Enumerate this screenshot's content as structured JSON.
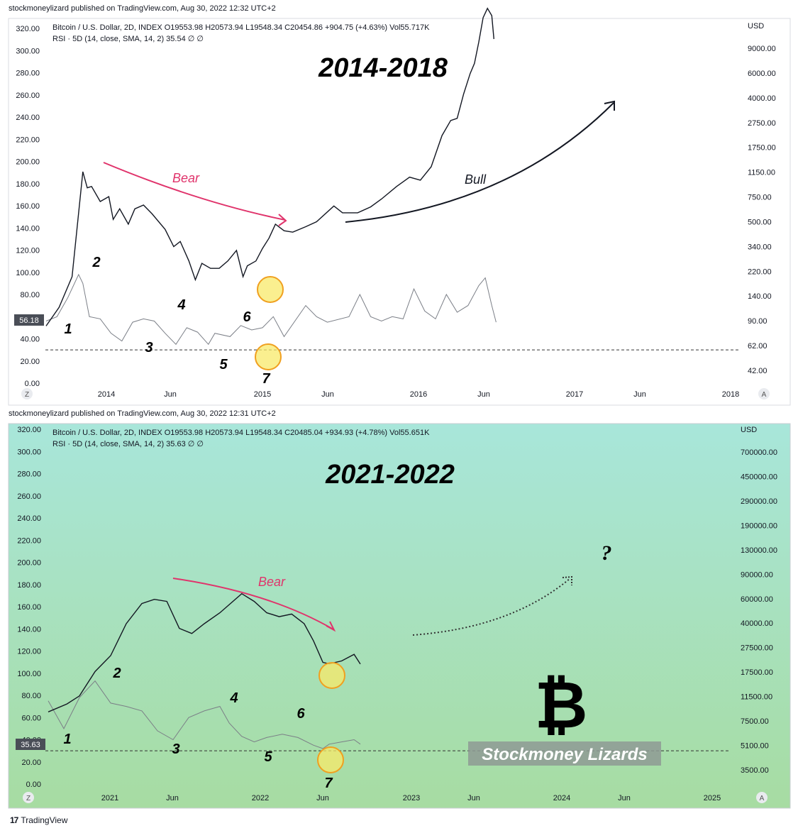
{
  "colors": {
    "bear": "#e0336b",
    "bull": "#131722",
    "price": "#131722",
    "rsi": "#7b7f87",
    "circle_fill": "#f8e96a",
    "circle_stroke": "#f0a020",
    "panel2_top": "#a8e6da",
    "panel2_bottom": "#a7dca2"
  },
  "footer": {
    "logo": "17",
    "brand": "TradingView"
  },
  "chart_data": [
    {
      "type": "line",
      "publisher_line": "stockmoneylizard published on TradingView.com, Aug 30, 2022 12:32 UTC+2",
      "header": {
        "ohlc": "Bitcoin / U.S. Dollar, 2D, INDEX  O19553.98  H20573.94  L19548.34  C20454.86  +904.75 (+4.63%)  Vol55.717K",
        "rsi": "RSI · 5D (14, close, SMA, 14, 2)  35.54  ∅  ∅"
      },
      "title": "2014-2018",
      "left_axis_ticks": [
        "320.00",
        "300.00",
        "280.00",
        "260.00",
        "240.00",
        "220.00",
        "200.00",
        "180.00",
        "160.00",
        "140.00",
        "120.00",
        "100.00",
        "80.00",
        "60.00",
        "40.00",
        "20.00",
        "0.00"
      ],
      "right_axis_unit": "USD",
      "right_axis_ticks": [
        "9000.00",
        "6000.00",
        "4000.00",
        "2750.00",
        "1750.00",
        "1150.00",
        "750.00",
        "500.00",
        "340.00",
        "220.00",
        "140.00",
        "90.00",
        "62.00",
        "42.00"
      ],
      "x_ticks": [
        "2014",
        "Jun",
        "2015",
        "Jun",
        "2016",
        "Jun",
        "2017",
        "Jun",
        "2018"
      ],
      "current_rsi_label": "56.18",
      "rsi_reference_level": 30,
      "annotations": {
        "bear": "Bear",
        "bull": "Bull",
        "waves": [
          "1",
          "2",
          "3",
          "4",
          "5",
          "6",
          "7"
        ]
      },
      "corner_left": "Z",
      "corner_right": "A",
      "price_series": [
        [
          0,
          88
        ],
        [
          0.06,
          120
        ],
        [
          0.12,
          200
        ],
        [
          0.17,
          1150
        ],
        [
          0.19,
          880
        ],
        [
          0.21,
          900
        ],
        [
          0.25,
          700
        ],
        [
          0.29,
          760
        ],
        [
          0.31,
          520
        ],
        [
          0.34,
          620
        ],
        [
          0.38,
          480
        ],
        [
          0.41,
          620
        ],
        [
          0.45,
          660
        ],
        [
          0.49,
          570
        ],
        [
          0.55,
          440
        ],
        [
          0.59,
          330
        ],
        [
          0.62,
          360
        ],
        [
          0.66,
          260
        ],
        [
          0.69,
          190
        ],
        [
          0.72,
          250
        ],
        [
          0.76,
          230
        ],
        [
          0.8,
          230
        ],
        [
          0.84,
          260
        ],
        [
          0.88,
          310
        ],
        [
          0.91,
          200
        ],
        [
          0.93,
          240
        ],
        [
          0.97,
          260
        ],
        [
          1.0,
          320
        ],
        [
          1.03,
          380
        ],
        [
          1.06,
          480
        ],
        [
          1.1,
          430
        ],
        [
          1.14,
          420
        ],
        [
          1.2,
          460
        ],
        [
          1.25,
          500
        ],
        [
          1.33,
          650
        ],
        [
          1.37,
          580
        ],
        [
          1.44,
          580
        ],
        [
          1.5,
          640
        ],
        [
          1.55,
          730
        ],
        [
          1.62,
          900
        ],
        [
          1.68,
          1050
        ],
        [
          1.73,
          1000
        ],
        [
          1.78,
          1250
        ],
        [
          1.83,
          2100
        ],
        [
          1.87,
          2700
        ],
        [
          1.9,
          2800
        ],
        [
          1.93,
          4200
        ],
        [
          1.96,
          5900
        ],
        [
          1.98,
          7000
        ],
        [
          2.0,
          10000
        ],
        [
          2.02,
          15000
        ],
        [
          2.04,
          17500
        ],
        [
          2.06,
          15500
        ],
        [
          2.07,
          10500
        ]
      ],
      "rsi_series": [
        [
          0,
          56
        ],
        [
          0.05,
          60
        ],
        [
          0.1,
          77
        ],
        [
          0.15,
          98
        ],
        [
          0.17,
          90
        ],
        [
          0.2,
          60
        ],
        [
          0.25,
          58
        ],
        [
          0.3,
          45
        ],
        [
          0.35,
          38
        ],
        [
          0.4,
          55
        ],
        [
          0.45,
          58
        ],
        [
          0.5,
          56
        ],
        [
          0.55,
          45
        ],
        [
          0.6,
          35
        ],
        [
          0.65,
          50
        ],
        [
          0.7,
          46
        ],
        [
          0.75,
          35
        ],
        [
          0.78,
          45
        ],
        [
          0.85,
          42
        ],
        [
          0.9,
          52
        ],
        [
          0.95,
          48
        ],
        [
          1.0,
          50
        ],
        [
          1.05,
          60
        ],
        [
          1.1,
          42
        ],
        [
          1.2,
          70
        ],
        [
          1.25,
          60
        ],
        [
          1.3,
          55
        ],
        [
          1.4,
          60
        ],
        [
          1.45,
          80
        ],
        [
          1.5,
          60
        ],
        [
          1.55,
          56
        ],
        [
          1.6,
          60
        ],
        [
          1.65,
          58
        ],
        [
          1.7,
          85
        ],
        [
          1.75,
          65
        ],
        [
          1.8,
          58
        ],
        [
          1.85,
          80
        ],
        [
          1.9,
          64
        ],
        [
          1.95,
          70
        ],
        [
          2.0,
          88
        ],
        [
          2.03,
          95
        ],
        [
          2.06,
          70
        ],
        [
          2.08,
          55
        ]
      ]
    },
    {
      "type": "line",
      "publisher_line": "stockmoneylizard published on TradingView.com, Aug 30, 2022 12:31 UTC+2",
      "header": {
        "ohlc": "Bitcoin / U.S. Dollar, 2D, INDEX  O19553.98  H20573.94  L19548.34  C20485.04  +934.93 (+4.78%)  Vol55.651K",
        "rsi": "RSI · 5D (14, close, SMA, 14, 2)  35.63  ∅  ∅"
      },
      "title": "2021-2022",
      "left_axis_ticks": [
        "320.00",
        "300.00",
        "280.00",
        "260.00",
        "240.00",
        "220.00",
        "200.00",
        "180.00",
        "160.00",
        "140.00",
        "120.00",
        "100.00",
        "80.00",
        "60.00",
        "40.00",
        "20.00",
        "0.00"
      ],
      "right_axis_unit": "USD",
      "right_axis_ticks": [
        "700000.00",
        "450000.00",
        "290000.00",
        "190000.00",
        "130000.00",
        "90000.00",
        "60000.00",
        "40000.00",
        "27500.00",
        "17500.00",
        "11500.00",
        "7500.00",
        "5100.00",
        "3500.00"
      ],
      "x_ticks": [
        "2021",
        "Jun",
        "2022",
        "Jun",
        "2023",
        "Jun",
        "2024",
        "Jun",
        "2025"
      ],
      "current_rsi_label": "35.63",
      "rsi_reference_level": 30,
      "annotations": {
        "bear": "Bear",
        "question": "?",
        "waves": [
          "1",
          "2",
          "3",
          "4",
          "5",
          "6",
          "7"
        ],
        "watermark": "Stockmoney Lizards",
        "bitcoin_symbol": "₿"
      },
      "corner_left": "Z",
      "corner_right": "A",
      "price_series": [
        [
          0,
          9200
        ],
        [
          0.06,
          10500
        ],
        [
          0.1,
          12000
        ],
        [
          0.15,
          18000
        ],
        [
          0.2,
          23500
        ],
        [
          0.25,
          40000
        ],
        [
          0.3,
          56000
        ],
        [
          0.34,
          60000
        ],
        [
          0.38,
          58000
        ],
        [
          0.42,
          37000
        ],
        [
          0.46,
          34000
        ],
        [
          0.5,
          40000
        ],
        [
          0.55,
          48000
        ],
        [
          0.62,
          66000
        ],
        [
          0.66,
          58000
        ],
        [
          0.7,
          48000
        ],
        [
          0.74,
          45000
        ],
        [
          0.78,
          47000
        ],
        [
          0.82,
          40000
        ],
        [
          0.85,
          30000
        ],
        [
          0.88,
          21000
        ],
        [
          0.9,
          20500
        ],
        [
          0.94,
          21500
        ],
        [
          0.98,
          24000
        ],
        [
          1.0,
          20400
        ]
      ],
      "rsi_series": [
        [
          0,
          75
        ],
        [
          0.05,
          50
        ],
        [
          0.1,
          78
        ],
        [
          0.15,
          93
        ],
        [
          0.2,
          73
        ],
        [
          0.25,
          70
        ],
        [
          0.3,
          66
        ],
        [
          0.35,
          48
        ],
        [
          0.4,
          40
        ],
        [
          0.45,
          60
        ],
        [
          0.5,
          66
        ],
        [
          0.55,
          70
        ],
        [
          0.58,
          55
        ],
        [
          0.62,
          43
        ],
        [
          0.66,
          38
        ],
        [
          0.7,
          42
        ],
        [
          0.75,
          45
        ],
        [
          0.8,
          42
        ],
        [
          0.85,
          35
        ],
        [
          0.88,
          32
        ],
        [
          0.9,
          36
        ],
        [
          0.94,
          38
        ],
        [
          0.98,
          40
        ],
        [
          1.0,
          36
        ]
      ]
    }
  ]
}
